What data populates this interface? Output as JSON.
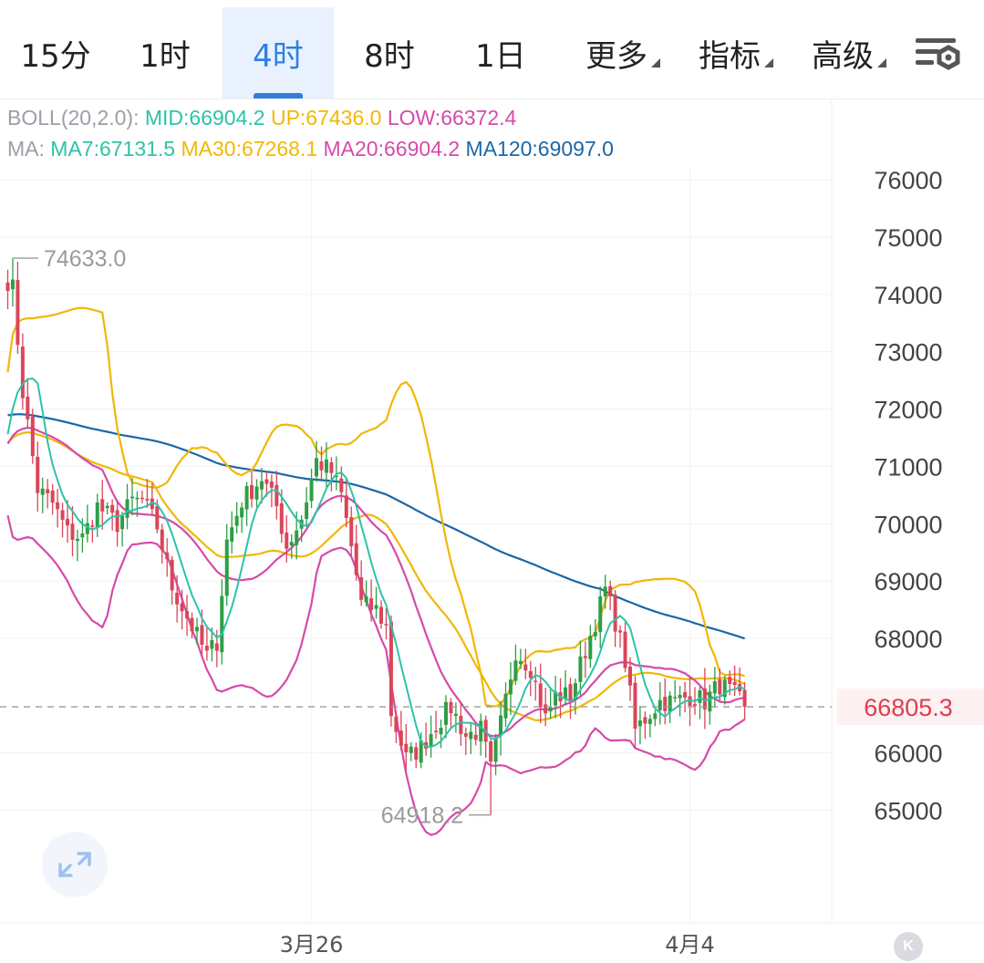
{
  "tabs": [
    {
      "label": "15分",
      "active": false
    },
    {
      "label": "1时",
      "active": false
    },
    {
      "label": "4时",
      "active": true
    },
    {
      "label": "8时",
      "active": false
    },
    {
      "label": "1日",
      "active": false
    },
    {
      "label": "更多",
      "active": false,
      "dropdown": true
    },
    {
      "label": "指标",
      "active": false,
      "dropdown": true
    },
    {
      "label": "高级",
      "active": false,
      "dropdown": true
    }
  ],
  "settings_icon": "chart-settings-icon",
  "legend": {
    "boll": {
      "prefix": "BOLL(20,2.0):",
      "mid": "MID:66904.2",
      "up": "UP:67436.0",
      "low": "LOW:66372.4"
    },
    "ma": {
      "prefix": "MA:",
      "ma7": "MA7:67131.5",
      "ma30": "MA30:67268.1",
      "ma20": "MA20:66904.2",
      "ma120": "MA120:69097.0"
    }
  },
  "colors": {
    "up": "#2e9e46",
    "down": "#d9465a",
    "ma7": "#2cc3a8",
    "ma30": "#f2b705",
    "ma20": "#d64aa9",
    "ma120": "#1a67a8",
    "price_label": "#e03c4f"
  },
  "chart_data": {
    "type": "candlestick",
    "interval": "4时",
    "y_ticks": [
      76000,
      75000,
      74000,
      73000,
      72000,
      71000,
      70000,
      69000,
      68000,
      66000,
      65000
    ],
    "ylim": [
      64500,
      77200
    ],
    "x_tick_labels": [
      {
        "index": 61,
        "label": "3月26"
      },
      {
        "index": 137,
        "label": "4月4"
      }
    ],
    "current_price": "66805.3",
    "current_value": 66805.3,
    "max_marker": {
      "index": 1,
      "value": 74633.0,
      "label": "74633.0"
    },
    "min_marker": {
      "index": 97,
      "value": 64918.2,
      "label": "64918.2"
    },
    "grid": true,
    "waypoints": [
      [
        0,
        74250
      ],
      [
        1,
        74100
      ],
      [
        3,
        72300
      ],
      [
        6,
        70600
      ],
      [
        9,
        70350
      ],
      [
        12,
        69850
      ],
      [
        15,
        69750
      ],
      [
        18,
        70300
      ],
      [
        22,
        70000
      ],
      [
        25,
        70400
      ],
      [
        27,
        70400
      ],
      [
        30,
        69950
      ],
      [
        33,
        68900
      ],
      [
        37,
        68200
      ],
      [
        40,
        67700
      ],
      [
        42,
        67950
      ],
      [
        44,
        69700
      ],
      [
        47,
        70400
      ],
      [
        51,
        70800
      ],
      [
        54,
        70300
      ],
      [
        56,
        69600
      ],
      [
        59,
        70100
      ],
      [
        62,
        71100
      ],
      [
        65,
        70900
      ],
      [
        67,
        70500
      ],
      [
        69,
        69600
      ],
      [
        71,
        68600
      ],
      [
        74,
        68500
      ],
      [
        76,
        68200
      ],
      [
        77,
        66700
      ],
      [
        80,
        65900
      ],
      [
        83,
        66100
      ],
      [
        86,
        66500
      ],
      [
        89,
        66800
      ],
      [
        92,
        66300
      ],
      [
        95,
        66400
      ],
      [
        97,
        65700
      ],
      [
        99,
        66500
      ],
      [
        102,
        67800
      ],
      [
        105,
        67500
      ],
      [
        108,
        66600
      ],
      [
        110,
        67000
      ],
      [
        113,
        67000
      ],
      [
        116,
        67800
      ],
      [
        118,
        68300
      ],
      [
        120,
        68850
      ],
      [
        122,
        68300
      ],
      [
        124,
        67600
      ],
      [
        126,
        66400
      ],
      [
        128,
        66600
      ],
      [
        131,
        66900
      ],
      [
        134,
        66900
      ],
      [
        137,
        67000
      ],
      [
        140,
        66900
      ],
      [
        143,
        67200
      ],
      [
        146,
        67000
      ],
      [
        148,
        66805.3
      ]
    ]
  }
}
